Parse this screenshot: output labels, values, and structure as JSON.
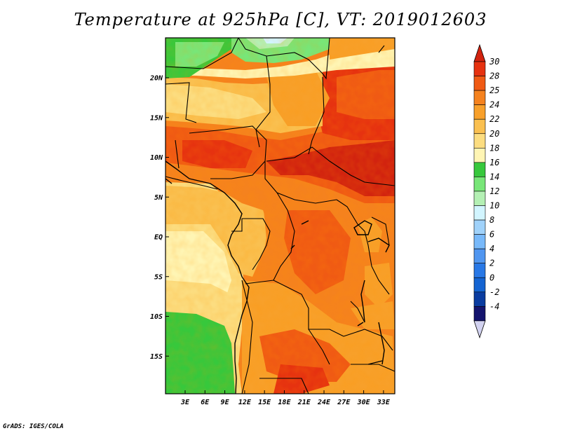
{
  "title": "Temperature at 925hPa [C], VT: 2019012603",
  "credit": "GrADS: IGES/COLA",
  "map": {
    "lat_labels": [
      "20N",
      "15N",
      "10N",
      "5N",
      "EQ",
      "5S",
      "10S",
      "15S"
    ],
    "lat_values": [
      20,
      15,
      10,
      5,
      0,
      -5,
      -10,
      -15
    ],
    "lon_labels": [
      "3E",
      "6E",
      "9E",
      "12E",
      "15E",
      "18E",
      "21E",
      "24E",
      "27E",
      "30E",
      "33E"
    ],
    "lon_values": [
      3,
      6,
      9,
      12,
      15,
      18,
      21,
      24,
      27,
      30,
      33
    ],
    "lon_range": [
      0,
      35
    ],
    "lat_range": [
      -20,
      25
    ]
  },
  "colorbar": {
    "labels": [
      "30",
      "28",
      "25",
      "24",
      "22",
      "20",
      "18",
      "16",
      "14",
      "12",
      "10",
      "8",
      "6",
      "4",
      "2",
      "0",
      "-2",
      "-4"
    ],
    "colors": [
      "#e63210",
      "#f05a14",
      "#f5821e",
      "#f8a02a",
      "#fac050",
      "#fcdd80",
      "#fff5b4",
      "#37c83c",
      "#78e678",
      "#b4f0b4",
      "#d2f5ff",
      "#a0d2fa",
      "#78b9fa",
      "#5096f0",
      "#2878e6",
      "#1464d2",
      "#0a3ca0",
      "#14146e"
    ],
    "top_color": "#d2230f",
    "bottom_color": "#d2d2f0"
  }
}
